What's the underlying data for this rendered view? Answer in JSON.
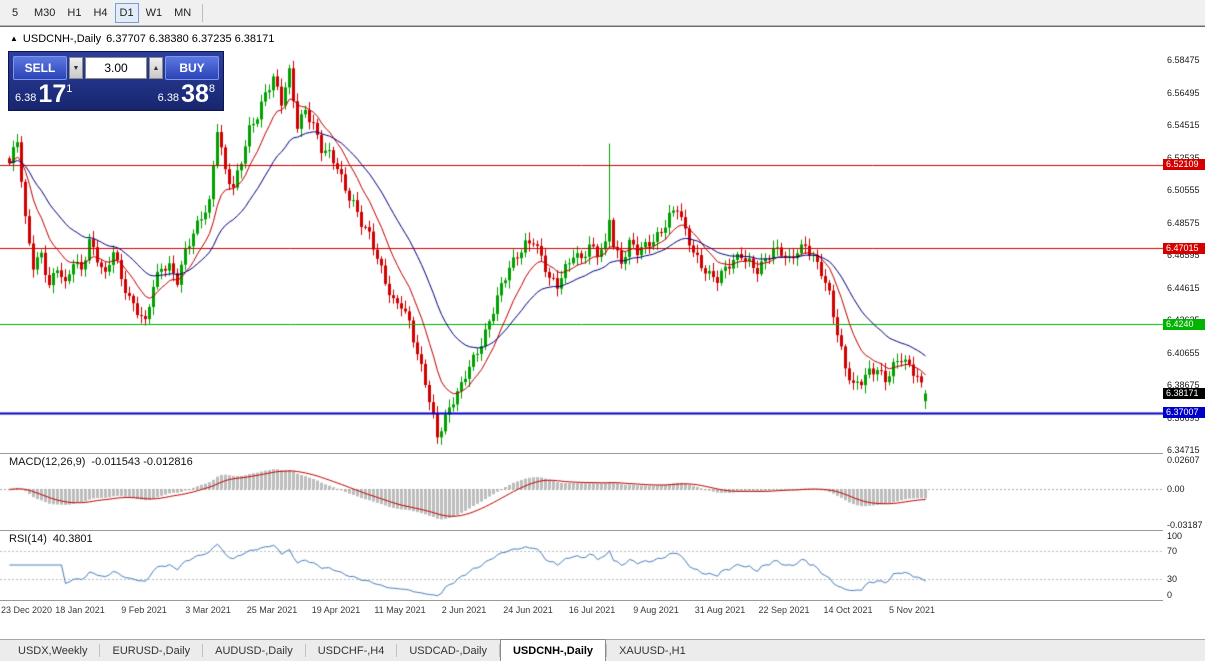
{
  "toolbar": {
    "timeframes": [
      "5",
      "M30",
      "H1",
      "H4",
      "D1",
      "W1",
      "MN"
    ],
    "active": "D1"
  },
  "chart_header": {
    "collapse": "▲",
    "title": "USDCNH-,Daily",
    "ohlc": "6.37707 6.38380 6.37235 6.38171"
  },
  "trade_panel": {
    "sell_label": "SELL",
    "buy_label": "BUY",
    "lot_size": "3.00",
    "spin_down_icon": "▼",
    "spin_up_icon": "▲",
    "sell_price_small": "6.38",
    "sell_price_big": "17",
    "sell_price_sup": "1",
    "buy_price_small": "6.38",
    "buy_price_big": "38",
    "buy_price_sup": "8"
  },
  "chart_data": {
    "type": "candlestick",
    "title": "USDCNH-,Daily",
    "current_bar": {
      "open": 6.37707,
      "high": 6.3838,
      "low": 6.37235,
      "close": 6.38171
    },
    "price_range": [
      6.3455,
      6.605
    ],
    "y_axis_ticks": [
      6.58475,
      6.56495,
      6.54515,
      6.52535,
      6.50555,
      6.48575,
      6.46595,
      6.44615,
      6.42635,
      6.40655,
      6.38675,
      6.36695,
      6.34715
    ],
    "x_axis_ticks": [
      {
        "i": 2,
        "label": "23 Dec 2020"
      },
      {
        "i": 18,
        "label": "18 Jan 2021"
      },
      {
        "i": 34,
        "label": "9 Feb 2021"
      },
      {
        "i": 50,
        "label": "3 Mar 2021"
      },
      {
        "i": 66,
        "label": "25 Mar 2021"
      },
      {
        "i": 82,
        "label": "19 Apr 2021"
      },
      {
        "i": 98,
        "label": "11 May 2021"
      },
      {
        "i": 114,
        "label": "2 Jun 2021"
      },
      {
        "i": 130,
        "label": "24 Jun 2021"
      },
      {
        "i": 146,
        "label": "16 Jul 2021"
      },
      {
        "i": 162,
        "label": "9 Aug 2021"
      },
      {
        "i": 178,
        "label": "31 Aug 2021"
      },
      {
        "i": 194,
        "label": "22 Sep 2021"
      },
      {
        "i": 210,
        "label": "14 Oct 2021"
      },
      {
        "i": 226,
        "label": "5 Nov 2021"
      }
    ],
    "horizontal_lines": [
      {
        "price": 6.52109,
        "label": "6.52109",
        "color": "#d40000",
        "width": 1
      },
      {
        "price": 6.47015,
        "label": "6.47015",
        "color": "#d40000",
        "width": 1
      },
      {
        "price": 6.42401,
        "label": "6.4240",
        "color": "#00b400",
        "width": 1
      },
      {
        "price": 6.37007,
        "label": "6.37007",
        "color": "#0000c8",
        "width": 2
      }
    ],
    "current_price_label": {
      "price": 6.38171,
      "label": "6.38171",
      "bg": "#000000"
    },
    "colors": {
      "up": "#00a000",
      "down": "#d00000",
      "ma_fast": "#c00000",
      "ma_slow": "#000080"
    },
    "candles": {
      "count": 230,
      "spike_high": {
        "index": 150,
        "price": 6.534
      },
      "spike_low": {
        "index": 107,
        "price": 6.3525
      },
      "close_anchors": [
        [
          0,
          6.522
        ],
        [
          2,
          6.535
        ],
        [
          4,
          6.486
        ],
        [
          6,
          6.46
        ],
        [
          8,
          6.468
        ],
        [
          10,
          6.448
        ],
        [
          12,
          6.458
        ],
        [
          14,
          6.446
        ],
        [
          16,
          6.462
        ],
        [
          18,
          6.458
        ],
        [
          20,
          6.476
        ],
        [
          22,
          6.464
        ],
        [
          24,
          6.452
        ],
        [
          26,
          6.468
        ],
        [
          28,
          6.452
        ],
        [
          30,
          6.441
        ],
        [
          32,
          6.433
        ],
        [
          34,
          6.424
        ],
        [
          36,
          6.446
        ],
        [
          38,
          6.458
        ],
        [
          40,
          6.46
        ],
        [
          42,
          6.452
        ],
        [
          44,
          6.468
        ],
        [
          46,
          6.478
        ],
        [
          48,
          6.488
        ],
        [
          50,
          6.498
        ],
        [
          52,
          6.545
        ],
        [
          54,
          6.518
        ],
        [
          56,
          6.506
        ],
        [
          58,
          6.522
        ],
        [
          60,
          6.542
        ],
        [
          62,
          6.552
        ],
        [
          64,
          6.566
        ],
        [
          66,
          6.574
        ],
        [
          68,
          6.558
        ],
        [
          70,
          6.576
        ],
        [
          72,
          6.545
        ],
        [
          74,
          6.556
        ],
        [
          76,
          6.546
        ],
        [
          78,
          6.53
        ],
        [
          80,
          6.526
        ],
        [
          82,
          6.519
        ],
        [
          84,
          6.507
        ],
        [
          86,
          6.499
        ],
        [
          88,
          6.486
        ],
        [
          90,
          6.477
        ],
        [
          92,
          6.463
        ],
        [
          94,
          6.45
        ],
        [
          96,
          6.439
        ],
        [
          98,
          6.437
        ],
        [
          100,
          6.424
        ],
        [
          102,
          6.404
        ],
        [
          104,
          6.388
        ],
        [
          106,
          6.368
        ],
        [
          107,
          6.357
        ],
        [
          109,
          6.368
        ],
        [
          111,
          6.377
        ],
        [
          113,
          6.385
        ],
        [
          115,
          6.398
        ],
        [
          117,
          6.408
        ],
        [
          119,
          6.42
        ],
        [
          121,
          6.433
        ],
        [
          123,
          6.446
        ],
        [
          125,
          6.457
        ],
        [
          127,
          6.466
        ],
        [
          129,
          6.474
        ],
        [
          131,
          6.476
        ],
        [
          133,
          6.464
        ],
        [
          135,
          6.45
        ],
        [
          137,
          6.447
        ],
        [
          139,
          6.459
        ],
        [
          141,
          6.468
        ],
        [
          143,
          6.464
        ],
        [
          145,
          6.47
        ],
        [
          147,
          6.466
        ],
        [
          149,
          6.472
        ],
        [
          150,
          6.49
        ],
        [
          151,
          6.474
        ],
        [
          153,
          6.462
        ],
        [
          155,
          6.473
        ],
        [
          157,
          6.467
        ],
        [
          159,
          6.471
        ],
        [
          161,
          6.476
        ],
        [
          163,
          6.482
        ],
        [
          165,
          6.49
        ],
        [
          167,
          6.494
        ],
        [
          169,
          6.479
        ],
        [
          171,
          6.468
        ],
        [
          173,
          6.461
        ],
        [
          175,
          6.455
        ],
        [
          177,
          6.451
        ],
        [
          179,
          6.456
        ],
        [
          181,
          6.462
        ],
        [
          183,
          6.467
        ],
        [
          185,
          6.463
        ],
        [
          187,
          6.457
        ],
        [
          189,
          6.462
        ],
        [
          191,
          6.468
        ],
        [
          193,
          6.468
        ],
        [
          195,
          6.464
        ],
        [
          197,
          6.47
        ],
        [
          199,
          6.471
        ],
        [
          201,
          6.463
        ],
        [
          203,
          6.455
        ],
        [
          205,
          6.443
        ],
        [
          207,
          6.42
        ],
        [
          209,
          6.398
        ],
        [
          211,
          6.385
        ],
        [
          213,
          6.388
        ],
        [
          215,
          6.395
        ],
        [
          217,
          6.398
        ],
        [
          219,
          6.391
        ],
        [
          221,
          6.398
        ],
        [
          223,
          6.402
        ],
        [
          225,
          6.397
        ],
        [
          227,
          6.393
        ],
        [
          229,
          6.382
        ]
      ]
    },
    "indicators": {
      "macd": {
        "label": "MACD(12,26,9)",
        "value_text": "-0.011543 -0.012816",
        "y_range": [
          -0.0365,
          0.0325
        ],
        "y_ticks": [
          {
            "v": 0.02607,
            "label": "0.02607"
          },
          {
            "v": 0,
            "label": "0.00"
          },
          {
            "v": -0.03187,
            "label": "-0.03187"
          }
        ],
        "histogram_color": "#bdbdbd",
        "signal_color": "#c00000"
      },
      "rsi": {
        "label": "RSI(14)",
        "value_text": "40.3801",
        "y_range": [
          0,
          100
        ],
        "y_ticks": [
          {
            "v": 100,
            "label": "100"
          },
          {
            "v": 70,
            "label": "70"
          },
          {
            "v": 30,
            "label": "30"
          },
          {
            "v": 0,
            "label": "0"
          }
        ],
        "levels": [
          70,
          30
        ],
        "line_color": "#4a7dbd"
      }
    }
  },
  "tabs": {
    "items": [
      "USDX,Weekly",
      "EURUSD-,Daily",
      "AUDUSD-,Daily",
      "USDCHF-,H4",
      "USDCAD-,Daily",
      "USDCNH-,Daily",
      "XAUUSD-,H1"
    ],
    "active": "USDCNH-,Daily"
  }
}
